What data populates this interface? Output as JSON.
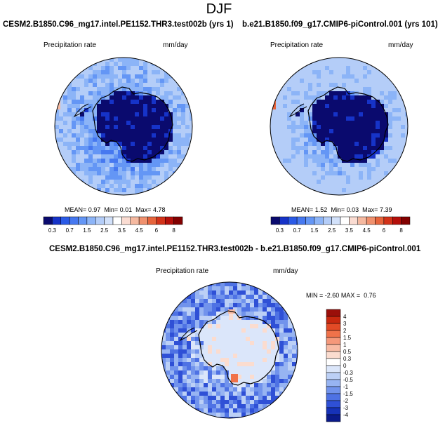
{
  "season": "DJF",
  "colors": {
    "levels": [
      "#0a0a6e",
      "#1633c8",
      "#2a5ae6",
      "#4678f0",
      "#6496f5",
      "#8cb4f7",
      "#b4cdf8",
      "#d2e1fa",
      "#ffffff",
      "#fadcd2",
      "#f5b9a0",
      "#f0916e",
      "#e6643c",
      "#d23219",
      "#b40f0a",
      "#820000"
    ],
    "land_outline": "#000000"
  },
  "chart_data": [
    {
      "type": "heatmap",
      "projection": "south-polar-stereographic",
      "title": "CESM2.B1850.C96_mg17.intel.PE1152.THR3.test002b (yrs 1)",
      "left_label": "Precipitation rate",
      "right_label": "mm/day",
      "stats": {
        "mean_label": "MEAN=",
        "mean": "0.97",
        "min_label": "Min=",
        "min": "0.01",
        "max_label": "Max=",
        "max": "4.78"
      },
      "colorbar": {
        "orientation": "horizontal",
        "ticks": [
          "0.3",
          "0.7",
          "1",
          "1.5",
          "2",
          "2.5",
          "3",
          "3.5",
          "4",
          "4.5",
          "5",
          "6",
          "7",
          "8"
        ],
        "labels": [
          "0.3",
          "0.7",
          "1.5",
          "2.5",
          "3.5",
          "4.5",
          "6",
          "8"
        ]
      }
    },
    {
      "type": "heatmap",
      "projection": "south-polar-stereographic",
      "title": "b.e21.B1850.f09_g17.CMIP6-piControl.001 (yrs 101)",
      "left_label": "Precipitation rate",
      "right_label": "mm/day",
      "stats": {
        "mean_label": "MEAN=",
        "mean": "1.52",
        "min_label": "Min=",
        "min": "0.03",
        "max_label": "Max=",
        "max": "7.39"
      },
      "colorbar": {
        "orientation": "horizontal",
        "ticks": [
          "0.3",
          "0.7",
          "1",
          "1.5",
          "2",
          "2.5",
          "3",
          "3.5",
          "4",
          "4.5",
          "5",
          "6",
          "7",
          "8"
        ],
        "labels": [
          "0.3",
          "0.7",
          "1.5",
          "2.5",
          "3.5",
          "4.5",
          "6",
          "8"
        ]
      }
    },
    {
      "type": "heatmap",
      "projection": "south-polar-stereographic",
      "title": "CESM2.B1850.C96_mg17.intel.PE1152.THR3.test002b - b.e21.B1850.f09_g17.CMIP6-piControl.001",
      "left_label": "Precipitation rate",
      "right_label": "mm/day",
      "stats": {
        "min_label": "MIN =",
        "min": "-2.60",
        "max_label": "MAX =",
        "max": "0.76"
      },
      "colorbar": {
        "orientation": "vertical",
        "labels": [
          "4",
          "3",
          "2",
          "1.5",
          "1",
          "0.5",
          "0.3",
          "0",
          "-0.3",
          "-0.5",
          "-1",
          "-1.5",
          "-2",
          "-3",
          "-4"
        ],
        "colors": [
          "#9b0f0a",
          "#c8280f",
          "#e24a26",
          "#f0724a",
          "#f5987a",
          "#f8bba4",
          "#fbdccf",
          "#ffffff",
          "#dbe6fa",
          "#bcd0f6",
          "#97b4f2",
          "#7193ec",
          "#4e72e4",
          "#2f50d6",
          "#1632b8",
          "#0a1a8a"
        ]
      }
    }
  ]
}
